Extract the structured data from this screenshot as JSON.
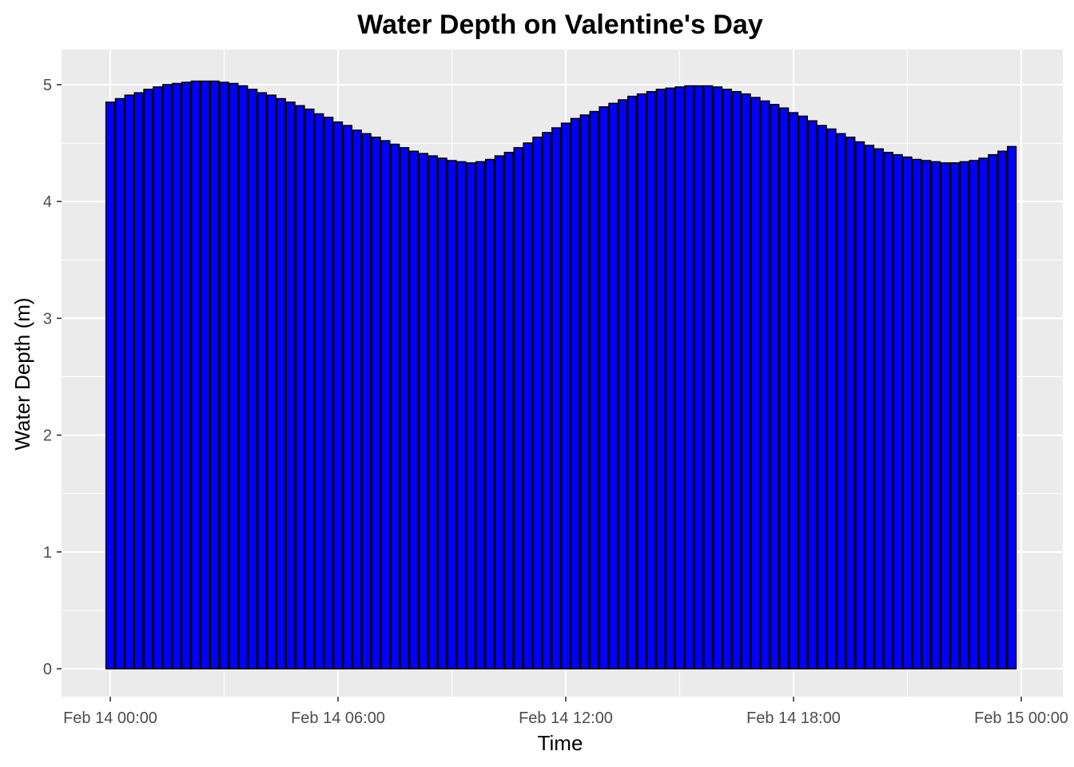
{
  "chart_data": {
    "type": "bar",
    "title": "Water Depth on Valentine's Day",
    "xlabel": "Time",
    "ylabel": "Water Depth (m)",
    "x_tick_labels": [
      "Feb 14 00:00",
      "Feb 14 06:00",
      "Feb 14 12:00",
      "Feb 14 18:00",
      "Feb 15 00:00"
    ],
    "y_tick_labels": [
      "0",
      "1",
      "2",
      "3",
      "4",
      "5"
    ],
    "y_ticks": [
      0,
      1,
      2,
      3,
      4,
      5
    ],
    "ylim": [
      0,
      5.2
    ],
    "xlim": [
      "Feb 14 00:00",
      "Feb 15 00:00"
    ],
    "grid": true,
    "legend": "none",
    "bar_fill": "#0000ff",
    "bar_outline": "#000000",
    "panel_background": "#ebebeb",
    "grid_color": "#ffffff",
    "times": [
      "Feb 14 00:00",
      "Feb 14 00:15",
      "Feb 14 00:30",
      "Feb 14 00:45",
      "Feb 14 01:00",
      "Feb 14 01:15",
      "Feb 14 01:30",
      "Feb 14 01:45",
      "Feb 14 02:00",
      "Feb 14 02:15",
      "Feb 14 02:30",
      "Feb 14 02:45",
      "Feb 14 03:00",
      "Feb 14 03:15",
      "Feb 14 03:30",
      "Feb 14 03:45",
      "Feb 14 04:00",
      "Feb 14 04:15",
      "Feb 14 04:30",
      "Feb 14 04:45",
      "Feb 14 05:00",
      "Feb 14 05:15",
      "Feb 14 05:30",
      "Feb 14 05:45",
      "Feb 14 06:00",
      "Feb 14 06:15",
      "Feb 14 06:30",
      "Feb 14 06:45",
      "Feb 14 07:00",
      "Feb 14 07:15",
      "Feb 14 07:30",
      "Feb 14 07:45",
      "Feb 14 08:00",
      "Feb 14 08:15",
      "Feb 14 08:30",
      "Feb 14 08:45",
      "Feb 14 09:00",
      "Feb 14 09:15",
      "Feb 14 09:30",
      "Feb 14 09:45",
      "Feb 14 10:00",
      "Feb 14 10:15",
      "Feb 14 10:30",
      "Feb 14 10:45",
      "Feb 14 11:00",
      "Feb 14 11:15",
      "Feb 14 11:30",
      "Feb 14 11:45",
      "Feb 14 12:00",
      "Feb 14 12:15",
      "Feb 14 12:30",
      "Feb 14 12:45",
      "Feb 14 13:00",
      "Feb 14 13:15",
      "Feb 14 13:30",
      "Feb 14 13:45",
      "Feb 14 14:00",
      "Feb 14 14:15",
      "Feb 14 14:30",
      "Feb 14 14:45",
      "Feb 14 15:00",
      "Feb 14 15:15",
      "Feb 14 15:30",
      "Feb 14 15:45",
      "Feb 14 16:00",
      "Feb 14 16:15",
      "Feb 14 16:30",
      "Feb 14 16:45",
      "Feb 14 17:00",
      "Feb 14 17:15",
      "Feb 14 17:30",
      "Feb 14 17:45",
      "Feb 14 18:00",
      "Feb 14 18:15",
      "Feb 14 18:30",
      "Feb 14 18:45",
      "Feb 14 19:00",
      "Feb 14 19:15",
      "Feb 14 19:30",
      "Feb 14 19:45",
      "Feb 14 20:00",
      "Feb 14 20:15",
      "Feb 14 20:30",
      "Feb 14 20:45",
      "Feb 14 21:00",
      "Feb 14 21:15",
      "Feb 14 21:30",
      "Feb 14 21:45",
      "Feb 14 22:00",
      "Feb 14 22:15",
      "Feb 14 22:30",
      "Feb 14 22:45",
      "Feb 14 23:00",
      "Feb 14 23:15",
      "Feb 14 23:30",
      "Feb 14 23:45"
    ],
    "values": [
      4.85,
      4.88,
      4.91,
      4.93,
      4.96,
      4.98,
      5.0,
      5.01,
      5.02,
      5.03,
      5.03,
      5.03,
      5.02,
      5.01,
      4.99,
      4.96,
      4.93,
      4.91,
      4.88,
      4.85,
      4.82,
      4.79,
      4.75,
      4.72,
      4.68,
      4.65,
      4.61,
      4.58,
      4.55,
      4.52,
      4.49,
      4.46,
      4.43,
      4.41,
      4.39,
      4.37,
      4.35,
      4.34,
      4.33,
      4.34,
      4.36,
      4.39,
      4.42,
      4.46,
      4.5,
      4.55,
      4.59,
      4.63,
      4.67,
      4.71,
      4.74,
      4.77,
      4.81,
      4.84,
      4.87,
      4.9,
      4.92,
      4.94,
      4.96,
      4.97,
      4.98,
      4.99,
      4.99,
      4.99,
      4.98,
      4.96,
      4.94,
      4.92,
      4.89,
      4.86,
      4.83,
      4.8,
      4.76,
      4.73,
      4.69,
      4.65,
      4.62,
      4.58,
      4.55,
      4.51,
      4.48,
      4.45,
      4.42,
      4.4,
      4.38,
      4.36,
      4.35,
      4.34,
      4.33,
      4.33,
      4.34,
      4.35,
      4.37,
      4.4,
      4.43,
      4.47
    ]
  }
}
